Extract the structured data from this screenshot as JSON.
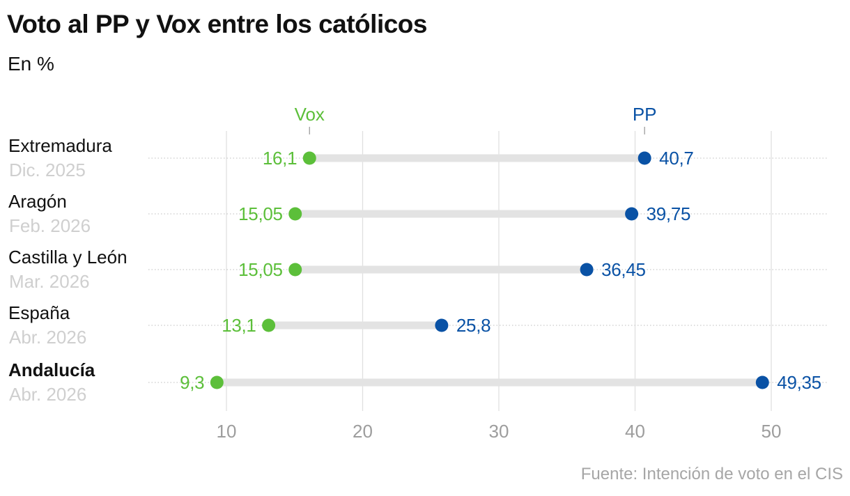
{
  "title": "Voto al PP y Vox entre los católicos",
  "subtitle": "En %",
  "source": "Fuente: Intención de voto en el CIS",
  "colors": {
    "vox": "#5cbf3a",
    "pp": "#0a52a5",
    "bar": "#e3e3e3",
    "grid": "#e0e0e0",
    "tick_text": "#9d9d9d",
    "date_text": "#cfcfcf",
    "label_text": "#111111"
  },
  "chart_data": {
    "type": "dot-range",
    "title": "Voto al PP y Vox entre los católicos",
    "subtitle": "En %",
    "series": [
      {
        "name": "Vox",
        "color": "#5cbf3a",
        "values": [
          16.1,
          15.05,
          15.05,
          13.1,
          9.3
        ],
        "labels": [
          "16,1",
          "15,05",
          "15,05",
          "13,1",
          "9,3"
        ]
      },
      {
        "name": "PP",
        "color": "#0a52a5",
        "values": [
          40.7,
          39.75,
          36.45,
          25.8,
          49.35
        ],
        "labels": [
          "40,7",
          "39,75",
          "36,45",
          "25,8",
          "49,35"
        ]
      }
    ],
    "rows": [
      {
        "name": "Extremadura",
        "date": "Dic. 2025",
        "bold": false
      },
      {
        "name": "Aragón",
        "date": "Feb. 2026",
        "bold": false
      },
      {
        "name": "Castilla y León",
        "date": "Mar. 2026",
        "bold": false
      },
      {
        "name": "España",
        "date": "Abr. 2026",
        "bold": false
      },
      {
        "name": "Andalucía",
        "date": "Abr. 2026",
        "bold": true
      }
    ],
    "x_ticks": [
      10,
      20,
      30,
      40,
      50
    ],
    "x_tick_labels": [
      "10",
      "20",
      "30",
      "40",
      "50"
    ],
    "xlim": [
      10,
      50
    ],
    "legend": "series names labelled above the first row",
    "grid": true
  }
}
